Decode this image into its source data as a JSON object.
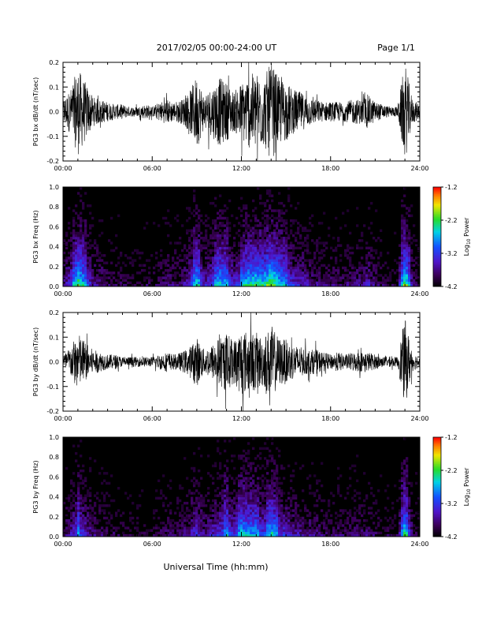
{
  "header": {
    "title": "2017/02/05  00:00-24:00 UT",
    "page": "Page 1/1"
  },
  "x_axis": {
    "label": "Universal Time (hh:mm)",
    "range_hours": [
      0,
      24
    ],
    "tick_hours": [
      0,
      6,
      12,
      18,
      24
    ],
    "tick_labels": [
      "00:00",
      "06:00",
      "12:00",
      "18:00",
      "24:00"
    ],
    "minor_ticks_per_major": 6
  },
  "chart_data": [
    {
      "type": "line",
      "id": "bx-waveform",
      "ylabel": "PG3 bx dB/dt (nT/sec)",
      "ylim": [
        -0.2,
        0.2
      ],
      "y_ticks": [
        -0.2,
        -0.1,
        0.0,
        0.1,
        0.2
      ],
      "y_tick_labels": [
        "-0.2",
        "-0.1",
        "0.0",
        "0.1",
        "0.2"
      ],
      "grid": false,
      "envelope": {
        "x_hours": [
          0,
          0.5,
          1,
          1.5,
          2,
          2.5,
          3,
          3.5,
          4,
          4.5,
          5,
          5.5,
          6,
          6.5,
          7,
          7.5,
          8,
          8.5,
          9,
          9.5,
          10,
          10.5,
          11,
          11.5,
          12,
          12.5,
          13,
          13.5,
          14,
          14.5,
          15,
          15.5,
          16,
          16.5,
          17,
          17.5,
          18,
          18.5,
          19,
          19.5,
          20,
          20.5,
          21,
          21.5,
          22,
          22.5,
          23,
          23.5,
          24
        ],
        "amplitude": [
          0.05,
          0.09,
          0.18,
          0.12,
          0.06,
          0.05,
          0.04,
          0.03,
          0.03,
          0.02,
          0.02,
          0.03,
          0.02,
          0.04,
          0.05,
          0.04,
          0.05,
          0.08,
          0.15,
          0.07,
          0.1,
          0.14,
          0.12,
          0.08,
          0.12,
          0.15,
          0.16,
          0.14,
          0.2,
          0.14,
          0.12,
          0.09,
          0.08,
          0.06,
          0.05,
          0.04,
          0.04,
          0.04,
          0.04,
          0.05,
          0.05,
          0.07,
          0.04,
          0.03,
          0.02,
          0.02,
          0.2,
          0.05,
          0.03
        ]
      }
    },
    {
      "type": "heatmap",
      "id": "bx-spectrogram",
      "ylabel": "PG3 bx Freq (Hz)",
      "ylim": [
        0,
        1.0
      ],
      "y_ticks": [
        0.0,
        0.2,
        0.4,
        0.6,
        0.8,
        1.0
      ],
      "y_tick_labels": [
        "0.0",
        "0.2",
        "0.4",
        "0.6",
        "0.8",
        "1.0"
      ],
      "colorbar": {
        "label_prefix": "Log",
        "label_sub": "10",
        "label_suffix": " Power",
        "range": [
          -4.2,
          -1.2
        ],
        "ticks": [
          -1.2,
          -2.2,
          -3.2,
          -4.2
        ],
        "tick_labels": [
          "-1.2",
          "-2.2",
          "-3.2",
          "-4.2"
        ]
      }
    },
    {
      "type": "line",
      "id": "by-waveform",
      "ylabel": "PG3 by dB/dt (nT/sec)",
      "ylim": [
        -0.2,
        0.2
      ],
      "y_ticks": [
        -0.2,
        -0.1,
        0.0,
        0.1,
        0.2
      ],
      "y_tick_labels": [
        "-0.2",
        "-0.1",
        "0.0",
        "0.1",
        "0.2"
      ],
      "grid": false,
      "envelope": {
        "x_hours": [
          0,
          0.5,
          1,
          1.5,
          2,
          2.5,
          3,
          3.5,
          4,
          4.5,
          5,
          5.5,
          6,
          6.5,
          7,
          7.5,
          8,
          8.5,
          9,
          9.5,
          10,
          10.5,
          11,
          11.5,
          12,
          12.5,
          13,
          13.5,
          14,
          14.5,
          15,
          15.5,
          16,
          16.5,
          17,
          17.5,
          18,
          18.5,
          19,
          19.5,
          20,
          20.5,
          21,
          21.5,
          22,
          22.5,
          23,
          23.5,
          24
        ],
        "amplitude": [
          0.03,
          0.06,
          0.12,
          0.08,
          0.05,
          0.04,
          0.03,
          0.03,
          0.02,
          0.02,
          0.02,
          0.02,
          0.02,
          0.03,
          0.04,
          0.03,
          0.04,
          0.06,
          0.1,
          0.05,
          0.07,
          0.1,
          0.12,
          0.09,
          0.14,
          0.12,
          0.12,
          0.1,
          0.15,
          0.1,
          0.09,
          0.07,
          0.06,
          0.05,
          0.05,
          0.04,
          0.03,
          0.04,
          0.03,
          0.04,
          0.04,
          0.04,
          0.03,
          0.02,
          0.02,
          0.02,
          0.18,
          0.04,
          0.02
        ]
      }
    },
    {
      "type": "heatmap",
      "id": "by-spectrogram",
      "ylabel": "PG3 by Freq (Hz)",
      "ylim": [
        0,
        1.0
      ],
      "y_ticks": [
        0.0,
        0.2,
        0.4,
        0.6,
        0.8,
        1.0
      ],
      "y_tick_labels": [
        "0.0",
        "0.2",
        "0.4",
        "0.6",
        "0.8",
        "1.0"
      ],
      "colorbar": {
        "label_prefix": "Log",
        "label_sub": "10",
        "label_suffix": " Power",
        "range": [
          -4.2,
          -1.2
        ],
        "ticks": [
          -1.2,
          -2.2,
          -3.2,
          -4.2
        ],
        "tick_labels": [
          "-1.2",
          "-2.2",
          "-3.2",
          "-4.2"
        ]
      }
    }
  ]
}
